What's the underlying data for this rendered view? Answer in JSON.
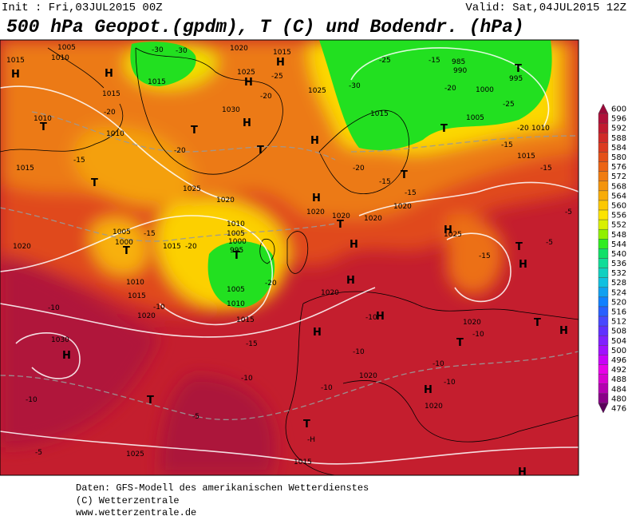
{
  "header": {
    "init": "Init : Fri,03JUL2015 00Z",
    "valid": "Valid: Sat,04JUL2015 12Z",
    "title": "500 hPa Geopot.(gpdm), T (C) und Bodendr. (hPa)"
  },
  "colorbar": {
    "levels": [
      476,
      480,
      484,
      488,
      492,
      496,
      500,
      504,
      508,
      512,
      516,
      520,
      524,
      528,
      532,
      536,
      540,
      544,
      548,
      552,
      556,
      560,
      564,
      568,
      572,
      576,
      580,
      584,
      588,
      592,
      596,
      600
    ],
    "colors": [
      "#5a005a",
      "#8a0088",
      "#b400b0",
      "#d800d0",
      "#e800e8",
      "#c800f8",
      "#a010ff",
      "#8020ff",
      "#6030ff",
      "#4848ff",
      "#2860ff",
      "#1080ff",
      "#10a0f0",
      "#10c0e0",
      "#10d0c0",
      "#10dc98",
      "#10e068",
      "#30ec20",
      "#90f000",
      "#d8f000",
      "#fce400",
      "#fcc800",
      "#f8ac08",
      "#f4940c",
      "#f07c10",
      "#ec6414",
      "#e45018",
      "#dc3a20",
      "#d02a28",
      "#c01a30",
      "#b0103a",
      "#9b0a3a"
    ]
  },
  "map_labels": [
    "1015",
    "1010",
    "1005",
    "H",
    "H",
    "1015",
    "-20",
    "1010",
    "T",
    "1010",
    "-20",
    "1015",
    "-15",
    "T",
    "1025",
    "1020",
    "1005",
    "1000",
    "T",
    "-15",
    "1015",
    "-20",
    "1020",
    "1010",
    "1015",
    "-10",
    "1020",
    "-10",
    "1030",
    "H",
    "-10",
    "T",
    "-5",
    "-5",
    "1025",
    "1015",
    "-10",
    "-15",
    "1015",
    "1010",
    "1005",
    "T",
    "1010",
    "1005",
    "1000",
    "995",
    "-20",
    "1020",
    "H",
    "-10",
    "1020",
    "-10",
    "T",
    "-H",
    "1020",
    "1015",
    "H",
    "-30",
    "-30",
    "1015",
    "1025",
    "H",
    "-25",
    "-20",
    "1030",
    "H",
    "T",
    "T",
    "H",
    "1025",
    "-30",
    "1015",
    "-25",
    "-15",
    "985",
    "990",
    "1000",
    "-20",
    "T",
    "995",
    "-25",
    "1005",
    "T",
    "-20",
    "1010",
    "-15",
    "1015",
    "-15",
    "1020",
    "H",
    "1020",
    "T",
    "1020",
    "1020",
    "-15",
    "-15",
    "T",
    "-20",
    "1025",
    "H",
    "-15",
    "T",
    "H",
    "-5",
    "-5",
    "H",
    "H",
    "-10",
    "H",
    "1020",
    "-10",
    "T",
    "T",
    "H",
    "-10",
    "-10",
    "H",
    "1020",
    "H"
  ],
  "footer": {
    "line1": "Daten: GFS-Modell des amerikanischen Wetterdienstes",
    "line2": "(C) Wetterzentrale",
    "line3": "www.wetterzentrale.de"
  }
}
